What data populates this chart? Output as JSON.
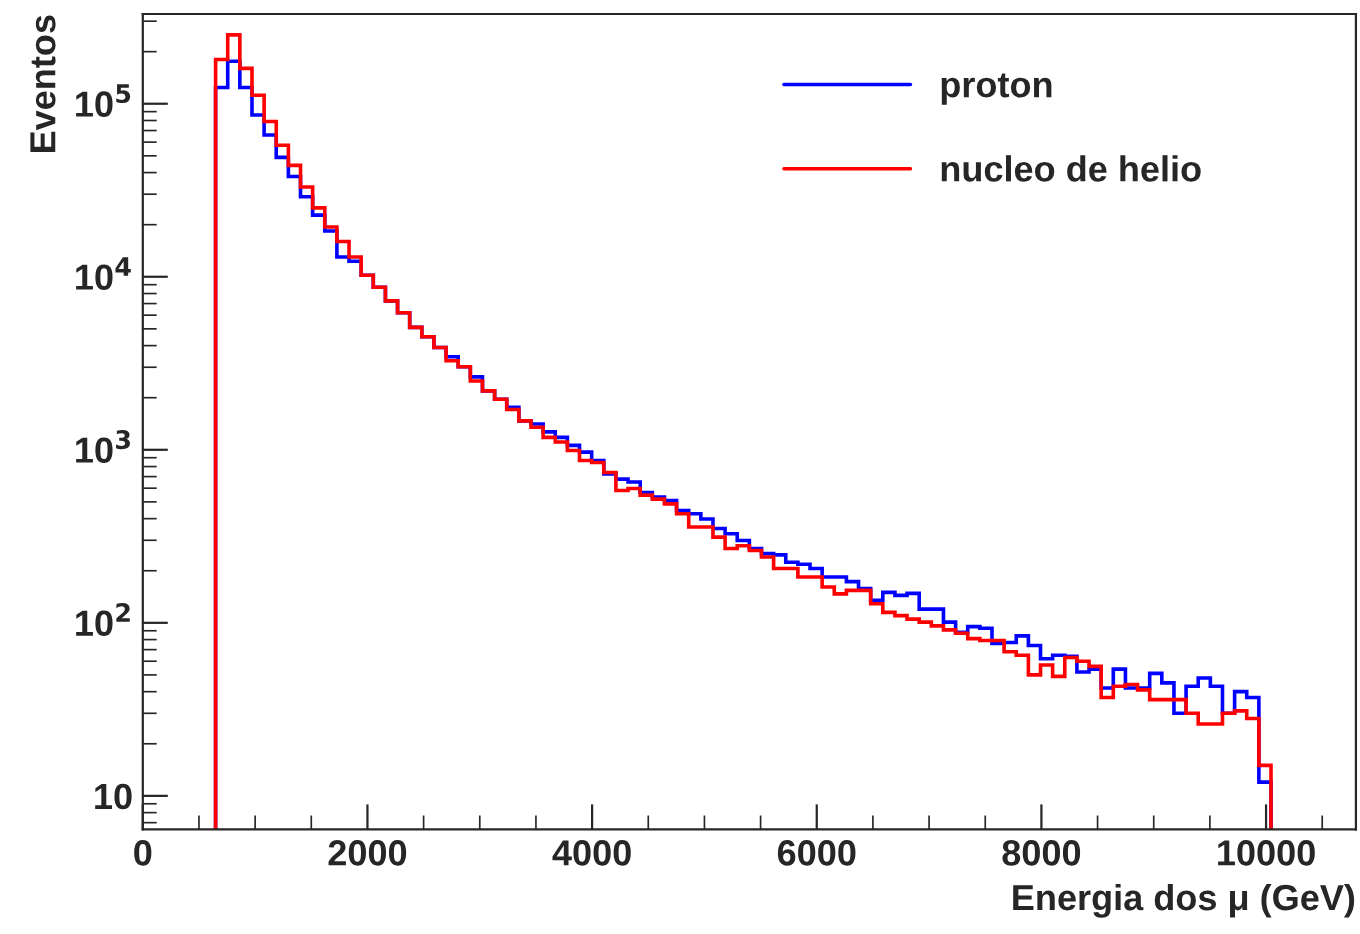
{
  "chart_data": {
    "type": "histogram",
    "xlabel": "Energia dos μ (GeV)",
    "ylabel": "Eventos",
    "bins": [
      648,
      756,
      864,
      972,
      1080,
      1188,
      1296,
      1404,
      1512,
      1620,
      1728,
      1836,
      1944,
      2052,
      2160,
      2268,
      2376,
      2484,
      2592,
      2700,
      2808,
      2916,
      3024,
      3132,
      3240,
      3348,
      3456,
      3564,
      3672,
      3780,
      3888,
      3996,
      4104,
      4212,
      4320,
      4428,
      4536,
      4644,
      4752,
      4860,
      4968,
      5076,
      5184,
      5292,
      5400,
      5508,
      5616,
      5724,
      5832,
      5940,
      6048,
      6156,
      6264,
      6372,
      6480,
      6588,
      6696,
      6804,
      6912,
      7020,
      7128,
      7236,
      7344,
      7452,
      7560,
      7668,
      7776,
      7884,
      7992,
      8100,
      8208,
      8316,
      8424,
      8532,
      8640,
      8748,
      8856,
      8964,
      9072,
      9180,
      9288,
      9396,
      9504,
      9612,
      9720,
      9828,
      9936,
      10044
    ],
    "series": [
      {
        "name": "proton",
        "color": "#0000ff",
        "values": [
          124000,
          176000,
          124000,
          86000,
          66000,
          49000,
          38000,
          29000,
          22700,
          18400,
          13000,
          12300,
          10200,
          8700,
          7250,
          6200,
          5100,
          4500,
          3900,
          3450,
          3020,
          2640,
          2190,
          1960,
          1760,
          1470,
          1410,
          1270,
          1180,
          1060,
          970,
          867,
          726,
          677,
          652,
          566,
          533,
          509,
          446,
          427,
          398,
          351,
          327,
          299,
          269,
          251,
          247,
          224,
          218,
          206,
          184,
          184,
          173,
          158,
          135,
          150,
          144,
          148,
          120,
          120,
          101,
          88,
          95,
          93,
          76,
          77,
          84,
          74,
          62,
          65,
          64,
          52,
          54,
          42,
          54,
          42,
          42,
          51,
          45,
          30,
          43,
          48,
          43,
          30,
          40,
          37,
          12
        ]
      },
      {
        "name": "nucleo de helio",
        "color": "#ff0000",
        "values": [
          180000,
          250000,
          160000,
          112000,
          79000,
          57500,
          44000,
          33000,
          25000,
          19400,
          16000,
          13000,
          10200,
          8700,
          7250,
          6200,
          5100,
          4500,
          3900,
          3270,
          3020,
          2500,
          2190,
          1960,
          1710,
          1470,
          1350,
          1180,
          1110,
          990,
          867,
          844,
          739,
          582,
          597,
          547,
          519,
          487,
          427,
          358,
          358,
          313,
          269,
          279,
          262,
          240,
          206,
          206,
          184,
          184,
          161,
          147,
          154,
          154,
          129,
          115,
          110,
          105,
          101,
          96,
          91,
          87,
          81,
          79,
          79,
          68,
          65,
          50,
          57,
          49,
          63,
          60,
          56,
          37,
          43,
          44,
          41,
          36,
          36,
          36,
          30,
          26,
          26,
          30,
          31,
          28,
          15
        ]
      }
    ],
    "log": "y",
    "xlim": [
      0,
      10800
    ],
    "ylim": [
      6.4,
      330000
    ],
    "xticks": [
      0,
      2000,
      4000,
      6000,
      8000,
      10000
    ],
    "yticks": [
      10,
      {
        "value": 100,
        "label": "10$^{2}$"
      },
      {
        "value": 1000,
        "label": "10$^{3}$"
      },
      {
        "value": 10000,
        "label": "10$^{4}$"
      },
      {
        "value": 100000,
        "label": "10$^{5}$"
      }
    ],
    "grid": false,
    "legend": "top right"
  }
}
